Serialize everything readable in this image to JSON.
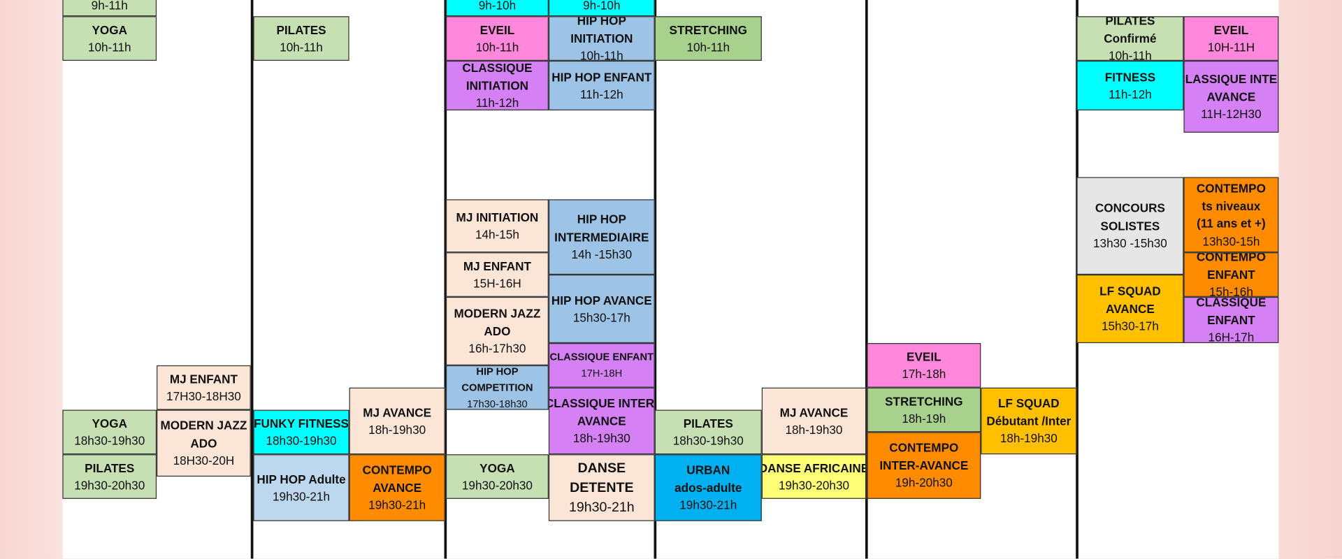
{
  "blocks": [
    {
      "lines": [
        "9h-11h"
      ]
    },
    {
      "lines": [
        "YOGA",
        "10h-11h"
      ]
    },
    {
      "lines": [
        "PILATES",
        "10h-11h"
      ]
    },
    {
      "lines": [
        "9h-10h"
      ]
    },
    {
      "lines": [
        "9h-10h"
      ]
    },
    {
      "lines": [
        "EVEIL",
        "10h-11h"
      ]
    },
    {
      "lines": [
        "HIP HOP",
        "INITIATION",
        "10h-11h"
      ]
    },
    {
      "lines": [
        "STRETCHING",
        "10h-11h"
      ]
    },
    {
      "lines": [
        "CLASSIQUE",
        "INITIATION",
        "11h-12h"
      ]
    },
    {
      "lines": [
        "HIP HOP ENFANT",
        "11h-12h"
      ]
    },
    {
      "lines": [
        "PILATES",
        "Confirmé",
        "10h-11h"
      ]
    },
    {
      "lines": [
        "EVEIL",
        "10H-11H"
      ]
    },
    {
      "lines": [
        "FITNESS",
        "11h-12h"
      ]
    },
    {
      "lines": [
        "CLASSIQUE INTER",
        "AVANCE",
        "11H-12H30"
      ]
    },
    {
      "lines": [
        "CONCOURS",
        "SOLISTES",
        "13h30 -15h30"
      ]
    },
    {
      "lines": [
        "CONTEMPO",
        "ts niveaux",
        "(11 ans et +)",
        "13h30-15h"
      ]
    },
    {
      "lines": [
        "CONTEMPO",
        "ENFANT",
        "15h-16h"
      ]
    },
    {
      "lines": [
        "LF SQUAD",
        "AVANCE",
        "15h30-17h"
      ]
    },
    {
      "lines": [
        "CLASSIQUE",
        "ENFANT",
        "16H-17h"
      ]
    },
    {
      "lines": [
        "MJ INITIATION",
        "14h-15h"
      ]
    },
    {
      "lines": [
        "HIP HOP",
        "INTERMEDIAIRE",
        "14h -15h30"
      ]
    },
    {
      "lines": [
        "MJ  ENFANT",
        "15H-16H"
      ]
    },
    {
      "lines": [
        "HIP HOP AVANCE",
        "15h30-17h"
      ]
    },
    {
      "lines": [
        "MODERN JAZZ",
        "ADO",
        "16h-17h30"
      ]
    },
    {
      "lines": [
        "CLASSIQUE ENFANT",
        "17H-18H"
      ]
    },
    {
      "lines": [
        "HIP HOP",
        "COMPETITION",
        "17h30-18h30"
      ]
    },
    {
      "lines": [
        "CLASSIQUE INTER-",
        "AVANCE",
        "18h-19h30"
      ]
    },
    {
      "lines": [
        "MJ  ENFANT",
        "17H30-18H30"
      ]
    },
    {
      "lines": [
        "YOGA",
        "18h30-19h30"
      ]
    },
    {
      "lines": [
        "MODERN JAZZ",
        "ADO",
        "18H30-20H"
      ]
    },
    {
      "lines": [
        "PILATES",
        "19h30-20h30"
      ]
    },
    {
      "lines": [
        "FUNKY FITNESS",
        "18h30-19h30"
      ]
    },
    {
      "lines": [
        "MJ AVANCE",
        "18h-19h30"
      ]
    },
    {
      "lines": [
        "HIP HOP Adulte",
        "19h30-21h"
      ]
    },
    {
      "lines": [
        "CONTEMPO",
        "AVANCE",
        "19h30-21h"
      ]
    },
    {
      "lines": [
        "YOGA",
        "19h30-20h30"
      ]
    },
    {
      "lines": [
        "DANSE",
        "DETENTE",
        "19h30-21h"
      ]
    },
    {
      "lines": [
        "PILATES",
        "18h30-19h30"
      ]
    },
    {
      "lines": [
        "MJ AVANCE",
        "18h-19h30"
      ]
    },
    {
      "lines": [
        "URBAN",
        "ados-adulte",
        "19h30-21h"
      ]
    },
    {
      "lines": [
        "DANSE AFRICAINE",
        "19h30-20h30"
      ]
    },
    {
      "lines": [
        "EVEIL",
        "17h-18h"
      ]
    },
    {
      "lines": [
        "STRETCHING",
        "18h-19h"
      ]
    },
    {
      "lines": [
        "CONTEMPO",
        "INTER-AVANCE",
        "19h-20h30"
      ]
    },
    {
      "lines": [
        "LF SQUAD",
        "Débutant /Inter",
        "18h-19h30"
      ]
    }
  ]
}
